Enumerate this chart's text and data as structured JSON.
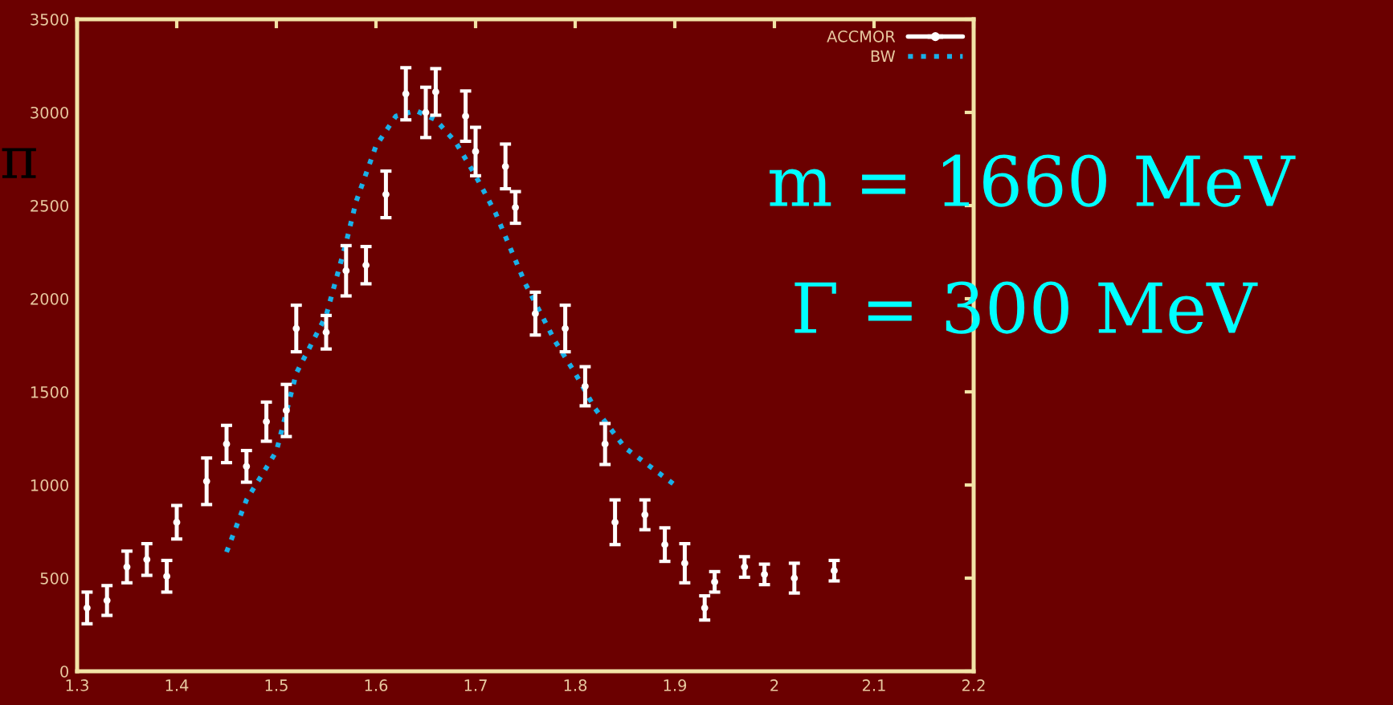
{
  "chart_data": {
    "type": "scatter",
    "xlim": [
      1.3,
      2.2
    ],
    "ylim": [
      0,
      3500
    ],
    "xticks": [
      1.3,
      1.4,
      1.5,
      1.6,
      1.7,
      1.8,
      1.9,
      2,
      2.1,
      2.2
    ],
    "yticks": [
      0,
      500,
      1000,
      1500,
      2000,
      2500,
      3000,
      3500
    ],
    "grid": false,
    "legend": "top right",
    "series": [
      {
        "name": "ACCMOR",
        "color": "#ffffff",
        "marker": "circle",
        "x": [
          1.31,
          1.33,
          1.35,
          1.37,
          1.39,
          1.4,
          1.43,
          1.45,
          1.47,
          1.49,
          1.51,
          1.52,
          1.55,
          1.57,
          1.59,
          1.61,
          1.63,
          1.65,
          1.66,
          1.69,
          1.7,
          1.73,
          1.74,
          1.76,
          1.79,
          1.81,
          1.83,
          1.84,
          1.87,
          1.89,
          1.91,
          1.93,
          1.94,
          1.97,
          1.99,
          2.02,
          2.06
        ],
        "values": [
          340,
          380,
          560,
          600,
          510,
          800,
          1020,
          1220,
          1100,
          1340,
          1400,
          1840,
          1820,
          2150,
          2180,
          2560,
          3100,
          3000,
          3110,
          2980,
          2790,
          2710,
          2490,
          1920,
          1840,
          1530,
          1220,
          800,
          840,
          680,
          580,
          340,
          480,
          560,
          520,
          500,
          540
        ],
        "errors": [
          85,
          80,
          85,
          85,
          85,
          90,
          125,
          100,
          85,
          105,
          140,
          125,
          90,
          135,
          100,
          125,
          140,
          135,
          125,
          135,
          130,
          120,
          85,
          115,
          125,
          105,
          110,
          120,
          80,
          90,
          105,
          65,
          55,
          55,
          55,
          80,
          55
        ]
      },
      {
        "name": "BW",
        "type": "line",
        "color": "#1ab0e8",
        "line_style": "dotted",
        "marker": "none",
        "x": [
          1.45,
          1.47,
          1.5,
          1.52,
          1.55,
          1.57,
          1.58,
          1.6,
          1.62,
          1.64,
          1.66,
          1.68,
          1.7,
          1.72,
          1.75,
          1.78,
          1.8,
          1.82,
          1.85,
          1.9
        ],
        "values": [
          640,
          920,
          1180,
          1600,
          1910,
          2300,
          2520,
          2820,
          2980,
          3010,
          2960,
          2840,
          2660,
          2460,
          2080,
          1770,
          1600,
          1410,
          1200,
          1000
        ]
      }
    ],
    "annotations": [
      "m = 1660 MeV",
      "Γ = 300 MeV",
      "π"
    ]
  }
}
